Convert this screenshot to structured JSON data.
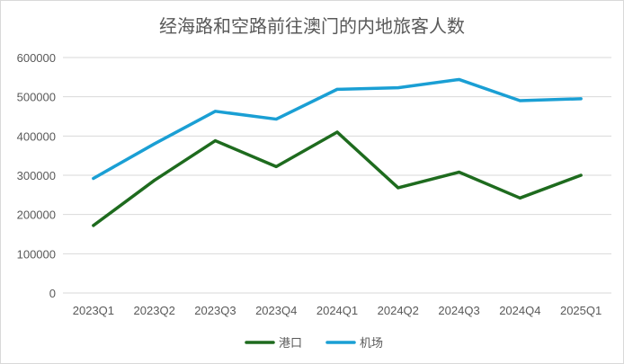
{
  "chart_data": {
    "type": "line",
    "title": "经海路和空路前往澳门的内地旅客人数",
    "categories": [
      "2023Q1",
      "2023Q2",
      "2023Q3",
      "2023Q4",
      "2024Q1",
      "2024Q2",
      "2024Q3",
      "2024Q4",
      "2025Q1"
    ],
    "ylim": [
      0,
      600000
    ],
    "yticks": [
      0,
      100000,
      200000,
      300000,
      400000,
      500000,
      600000
    ],
    "grid": true,
    "legend_position": "bottom",
    "series": [
      {
        "name": "港口",
        "color": "#1e6b1e",
        "values": [
          172000,
          287000,
          388000,
          322000,
          410000,
          268000,
          308000,
          242000,
          300000
        ]
      },
      {
        "name": "机场",
        "color": "#1a9fd4",
        "values": [
          292000,
          380000,
          463000,
          443000,
          519000,
          523000,
          544000,
          490000,
          495000
        ]
      }
    ]
  }
}
